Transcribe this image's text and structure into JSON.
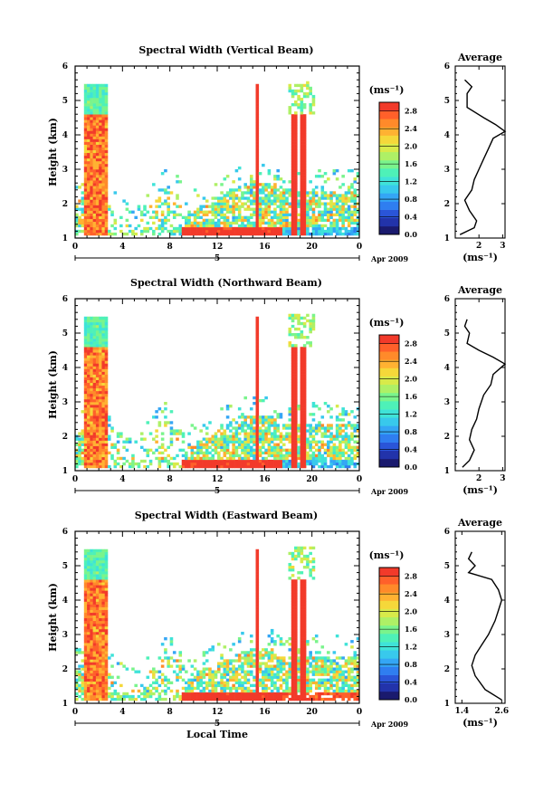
{
  "colors": {
    "scale": [
      "#1a1a6e",
      "#2233aa",
      "#2a55d8",
      "#2f7ef0",
      "#34a6f5",
      "#38c9ec",
      "#3fe3d8",
      "#4ef1b8",
      "#7af48c",
      "#aef066",
      "#d8ea4a",
      "#f5d83a",
      "#ffb232",
      "#ff8a2a",
      "#ff602a",
      "#f23a2a"
    ]
  },
  "panels": [
    {
      "title": "Spectral Width (Vertical Beam)",
      "ylabel": "Height (km)",
      "date_label": "Apr 2009",
      "day_label": "5",
      "cb_unit": "(ms⁻¹)",
      "avg_title": "Average",
      "avg_unit": "(ms⁻¹)"
    },
    {
      "title": "Spectral Width (Northward Beam)",
      "ylabel": "Height (km)",
      "date_label": "Apr 2009",
      "day_label": "5",
      "cb_unit": "(ms⁻¹)",
      "avg_title": "Average",
      "avg_unit": "(ms⁻¹)"
    },
    {
      "title": "Spectral Width (Eastward Beam)",
      "ylabel": "Height (km)",
      "date_label": "Apr 2009",
      "day_label": "5",
      "cb_unit": "(ms⁻¹)",
      "avg_title": "Average",
      "avg_unit": "(ms⁻¹)",
      "xlabel": "Local Time"
    }
  ],
  "chart_data": [
    {
      "type": "heatmap",
      "title": "Spectral Width (Vertical Beam)",
      "ylabel": "Height (km)",
      "xlim": [
        0,
        24
      ],
      "ylim": [
        1,
        6
      ],
      "x_ticks": [
        "0",
        "4",
        "8",
        "12",
        "16",
        "20",
        "0"
      ],
      "y_ticks": [
        "1",
        "2",
        "3",
        "4",
        "5",
        "6"
      ],
      "colorbar": {
        "unit": "(ms⁻¹)",
        "range": [
          0,
          3.0
        ],
        "ticks": [
          "0.0",
          "0.4",
          "0.8",
          "1.2",
          "1.6",
          "2.0",
          "2.4",
          "2.8"
        ]
      },
      "average_profile": {
        "title": "Average",
        "xlabel": "(ms⁻¹)",
        "xlim": [
          1,
          3.1
        ],
        "x_ticks": [
          "2",
          "3"
        ],
        "ylim": [
          1,
          6
        ],
        "points": [
          [
            1.2,
            1.1
          ],
          [
            1.8,
            1.3
          ],
          [
            1.9,
            1.5
          ],
          [
            1.6,
            1.8
          ],
          [
            1.4,
            2.1
          ],
          [
            1.7,
            2.4
          ],
          [
            1.8,
            2.7
          ],
          [
            2.0,
            3.0
          ],
          [
            2.2,
            3.3
          ],
          [
            2.4,
            3.6
          ],
          [
            2.6,
            3.9
          ],
          [
            3.1,
            4.1
          ],
          [
            2.7,
            4.3
          ],
          [
            2.2,
            4.5
          ],
          [
            1.5,
            4.8
          ],
          [
            1.5,
            5.2
          ],
          [
            1.7,
            5.4
          ],
          [
            1.4,
            5.6
          ]
        ]
      }
    },
    {
      "type": "heatmap",
      "title": "Spectral Width (Northward Beam)",
      "ylabel": "Height (km)",
      "xlim": [
        0,
        24
      ],
      "ylim": [
        1,
        6
      ],
      "x_ticks": [
        "0",
        "4",
        "8",
        "12",
        "16",
        "20",
        "0"
      ],
      "y_ticks": [
        "1",
        "2",
        "3",
        "4",
        "5",
        "6"
      ],
      "colorbar": {
        "unit": "(ms⁻¹)",
        "range": [
          0,
          3.0
        ],
        "ticks": [
          "0.0",
          "0.4",
          "0.8",
          "1.2",
          "1.6",
          "2.0",
          "2.4",
          "2.8"
        ]
      },
      "average_profile": {
        "title": "Average",
        "xlabel": "(ms⁻¹)",
        "xlim": [
          1,
          3.1
        ],
        "x_ticks": [
          "2",
          "3"
        ],
        "ylim": [
          1,
          6
        ],
        "points": [
          [
            1.3,
            1.1
          ],
          [
            1.6,
            1.3
          ],
          [
            1.8,
            1.6
          ],
          [
            1.6,
            1.9
          ],
          [
            1.7,
            2.2
          ],
          [
            1.9,
            2.5
          ],
          [
            2.0,
            2.8
          ],
          [
            2.2,
            3.2
          ],
          [
            2.5,
            3.5
          ],
          [
            2.6,
            3.8
          ],
          [
            3.1,
            4.1
          ],
          [
            2.6,
            4.3
          ],
          [
            2.0,
            4.5
          ],
          [
            1.5,
            4.7
          ],
          [
            1.6,
            5.0
          ],
          [
            1.4,
            5.2
          ],
          [
            1.5,
            5.4
          ]
        ]
      }
    },
    {
      "type": "heatmap",
      "title": "Spectral Width (Eastward Beam)",
      "xlabel": "Local Time",
      "ylabel": "Height (km)",
      "xlim": [
        0,
        24
      ],
      "ylim": [
        1,
        6
      ],
      "x_ticks": [
        "0",
        "4",
        "8",
        "12",
        "16",
        "20",
        "0"
      ],
      "y_ticks": [
        "1",
        "2",
        "3",
        "4",
        "5",
        "6"
      ],
      "colorbar": {
        "unit": "(ms⁻¹)",
        "range": [
          0,
          3.0
        ],
        "ticks": [
          "0.0",
          "0.4",
          "0.8",
          "1.2",
          "1.6",
          "2.0",
          "2.4",
          "2.8"
        ]
      },
      "average_profile": {
        "title": "Average",
        "xlabel": "(ms⁻¹)",
        "xlim": [
          1.2,
          2.7
        ],
        "x_ticks": [
          "1.4",
          "2.6"
        ],
        "ylim": [
          1,
          6
        ],
        "points": [
          [
            2.6,
            1.1
          ],
          [
            2.1,
            1.4
          ],
          [
            1.8,
            1.8
          ],
          [
            1.7,
            2.1
          ],
          [
            1.8,
            2.4
          ],
          [
            2.0,
            2.7
          ],
          [
            2.2,
            3.0
          ],
          [
            2.4,
            3.4
          ],
          [
            2.5,
            3.7
          ],
          [
            2.6,
            4.0
          ],
          [
            2.5,
            4.3
          ],
          [
            2.3,
            4.6
          ],
          [
            1.6,
            4.8
          ],
          [
            1.8,
            5.0
          ],
          [
            1.6,
            5.2
          ],
          [
            1.7,
            5.4
          ]
        ]
      }
    }
  ]
}
